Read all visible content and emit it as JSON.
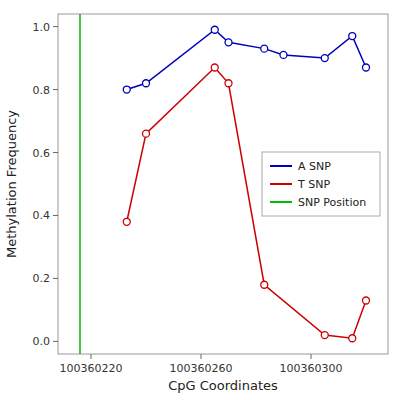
{
  "chart_data": {
    "type": "line",
    "xlabel": "CpG Coordinates",
    "ylabel": "Methylation Frequency",
    "series": [
      {
        "name": "A SNP",
        "color": "#0000BB",
        "marker": "circle",
        "x": [
          100360233,
          100360240,
          100360265,
          100360270,
          100360283,
          100360290,
          100360305,
          100360315,
          100360320
        ],
        "values": [
          0.8,
          0.82,
          0.99,
          0.95,
          0.93,
          0.91,
          0.9,
          0.97,
          0.87
        ]
      },
      {
        "name": "T SNP",
        "color": "#CC0000",
        "marker": "circle",
        "x": [
          100360233,
          100360240,
          100360265,
          100360270,
          100360283,
          100360305,
          100360315,
          100360320
        ],
        "values": [
          0.38,
          0.66,
          0.87,
          0.82,
          0.18,
          0.02,
          0.01,
          0.13
        ]
      },
      {
        "name": "SNP Position",
        "color": "#00BB00",
        "type": "vline",
        "x": [
          100360216
        ]
      }
    ],
    "xlim": [
      100360208,
      100360328
    ],
    "ylim": [
      -0.04,
      1.04
    ],
    "xticks": [
      100360220,
      100360260,
      100360300
    ],
    "yticks": [
      {
        "value": 0.0,
        "label": "0.0"
      },
      0.2,
      0.4,
      0.6,
      0.8,
      {
        "value": 1.0,
        "label": "1.0"
      }
    ],
    "grid": false,
    "legend": "right"
  }
}
